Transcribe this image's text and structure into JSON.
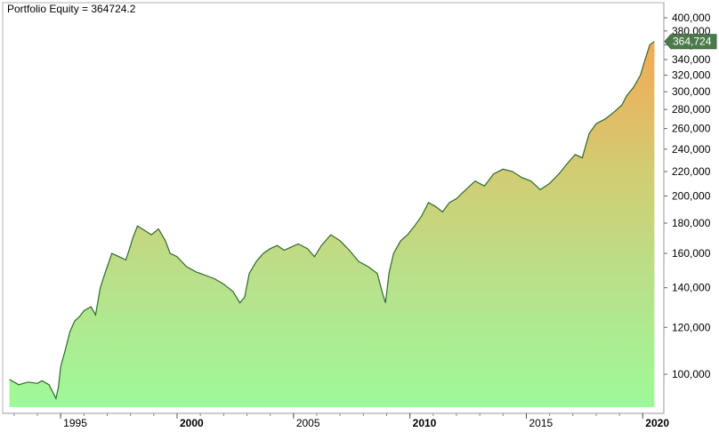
{
  "chart_data": {
    "type": "area",
    "title": "Portfolio Equity = 364724.2",
    "last_value_label": "364,724",
    "ylim": [
      88000,
      400000
    ],
    "y_scale": "log",
    "xlim": [
      1992.7,
      2020.6
    ],
    "grid": false,
    "y_ticks": [
      {
        "value": 100000,
        "label": "100,000"
      },
      {
        "value": 120000,
        "label": "120,000"
      },
      {
        "value": 140000,
        "label": "140,000"
      },
      {
        "value": 160000,
        "label": "160,000"
      },
      {
        "value": 180000,
        "label": "180,000"
      },
      {
        "value": 200000,
        "label": "200,000"
      },
      {
        "value": 220000,
        "label": "220,000"
      },
      {
        "value": 240000,
        "label": "240,000"
      },
      {
        "value": 260000,
        "label": "260,000"
      },
      {
        "value": 280000,
        "label": "280,000"
      },
      {
        "value": 300000,
        "label": "300,000"
      },
      {
        "value": 320000,
        "label": "320,000"
      },
      {
        "value": 340000,
        "label": "340,000"
      },
      {
        "value": 360000,
        "label": "360,000"
      },
      {
        "value": 380000,
        "label": "380,000"
      },
      {
        "value": 400000,
        "label": "400,000"
      }
    ],
    "x_ticks": [
      {
        "value": 1995,
        "label": "1995",
        "major": false
      },
      {
        "value": 2000,
        "label": "2000",
        "major": true
      },
      {
        "value": 2005,
        "label": "2005",
        "major": false
      },
      {
        "value": 2010,
        "label": "2010",
        "major": true
      },
      {
        "value": 2015,
        "label": "2015",
        "major": false
      },
      {
        "value": 2020,
        "label": "2020",
        "major": true
      }
    ],
    "series": [
      {
        "x": [
          1992.8,
          1993.2,
          1993.6,
          1994.0,
          1994.2,
          1994.5,
          1994.8,
          1994.9,
          1995.0,
          1995.2,
          1995.4,
          1995.6,
          1995.8,
          1996.0,
          1996.3,
          1996.5,
          1996.7,
          1996.9,
          1997.2,
          1997.5,
          1997.8,
          1998.0,
          1998.1,
          1998.3,
          1998.6,
          1998.9,
          1999.2,
          1999.5,
          1999.7,
          2000.0,
          2000.4,
          2000.8,
          2001.2,
          2001.6,
          2002.0,
          2002.4,
          2002.7,
          2002.9,
          2003.1,
          2003.4,
          2003.7,
          2004.0,
          2004.3,
          2004.6,
          2004.9,
          2005.2,
          2005.6,
          2005.9,
          2006.2,
          2006.6,
          2007.0,
          2007.4,
          2007.8,
          2008.2,
          2008.6,
          2008.8,
          2008.95,
          2009.1,
          2009.3,
          2009.6,
          2009.9,
          2010.2,
          2010.5,
          2010.8,
          2011.1,
          2011.4,
          2011.7,
          2012.0,
          2012.4,
          2012.8,
          2013.2,
          2013.6,
          2014.0,
          2014.4,
          2014.8,
          2015.2,
          2015.6,
          2016.0,
          2016.4,
          2016.8,
          2017.1,
          2017.4,
          2017.7,
          2018.0,
          2018.4,
          2018.8,
          2019.1,
          2019.3,
          2019.6,
          2019.9,
          2020.1,
          2020.3,
          2020.5
        ],
        "y": [
          98000,
          96000,
          97000,
          96500,
          97500,
          96000,
          91000,
          95000,
          103000,
          110000,
          118000,
          123000,
          125000,
          128000,
          130000,
          126000,
          140000,
          148000,
          160000,
          158000,
          156000,
          165000,
          170000,
          178000,
          175000,
          172000,
          176000,
          168000,
          160000,
          158000,
          152000,
          149000,
          147000,
          145000,
          142000,
          138000,
          132000,
          135000,
          148000,
          155000,
          160000,
          163000,
          165000,
          162000,
          164000,
          166000,
          163000,
          158000,
          165000,
          172000,
          168000,
          162000,
          155000,
          152000,
          148000,
          138000,
          132000,
          148000,
          160000,
          168000,
          172000,
          178000,
          185000,
          195000,
          192000,
          188000,
          195000,
          198000,
          205000,
          212000,
          208000,
          218000,
          222000,
          220000,
          215000,
          212000,
          205000,
          210000,
          218000,
          228000,
          235000,
          232000,
          255000,
          265000,
          270000,
          278000,
          285000,
          295000,
          305000,
          320000,
          340000,
          360000,
          364724
        ]
      }
    ]
  }
}
